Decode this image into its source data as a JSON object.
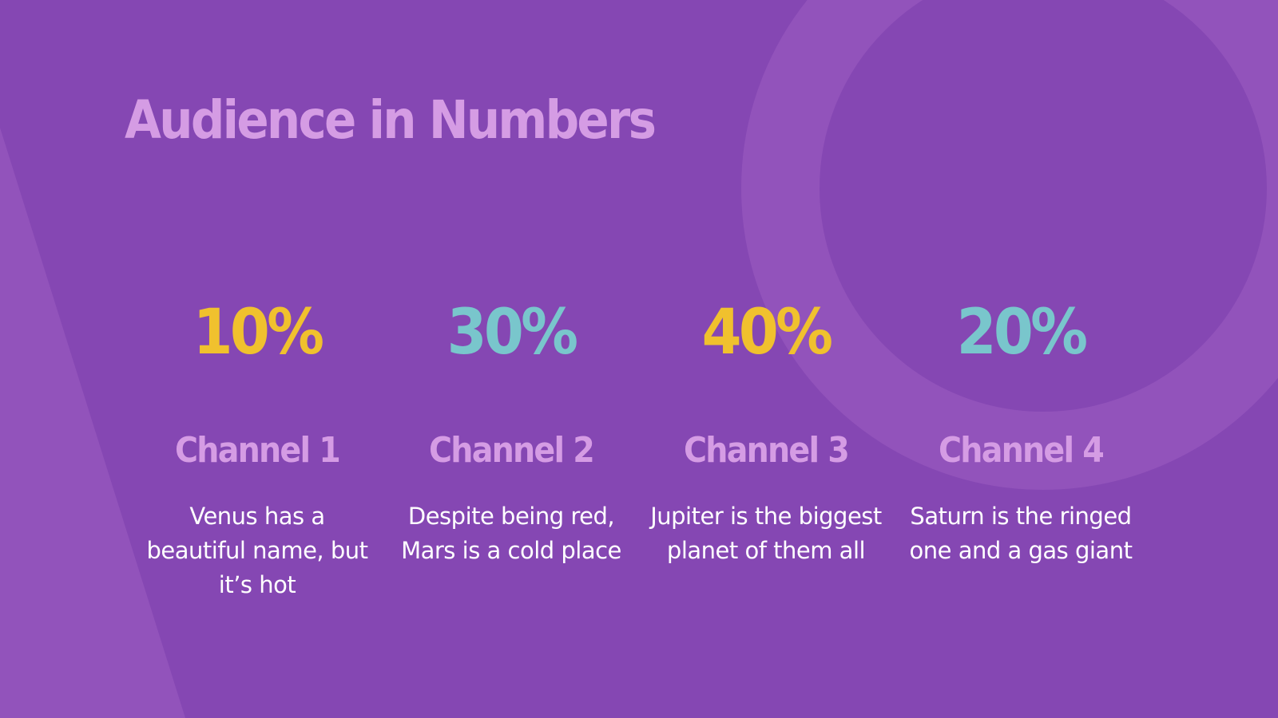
{
  "slide": {
    "title": "Audience in Numbers",
    "colors": {
      "background": "#8547b3",
      "decoration": "#9253bb",
      "title": "#d59ce4",
      "yellow": "#f0c12e",
      "teal": "#79c6cc",
      "text": "#ffffff"
    },
    "stats": [
      {
        "value": "10%",
        "value_color": "#f0c12e",
        "label": "Channel 1",
        "description": "Venus has a beautiful name, but it’s hot"
      },
      {
        "value": "30%",
        "value_color": "#79c6cc",
        "label": "Channel 2",
        "description": "Despite being red,  Mars is a cold place"
      },
      {
        "value": "40%",
        "value_color": "#f0c12e",
        "label": "Channel 3",
        "description": "Jupiter is the biggest planet of them all"
      },
      {
        "value": "20%",
        "value_color": "#79c6cc",
        "label": "Channel 4",
        "description": "Saturn is the ringed one and a gas giant"
      }
    ]
  }
}
